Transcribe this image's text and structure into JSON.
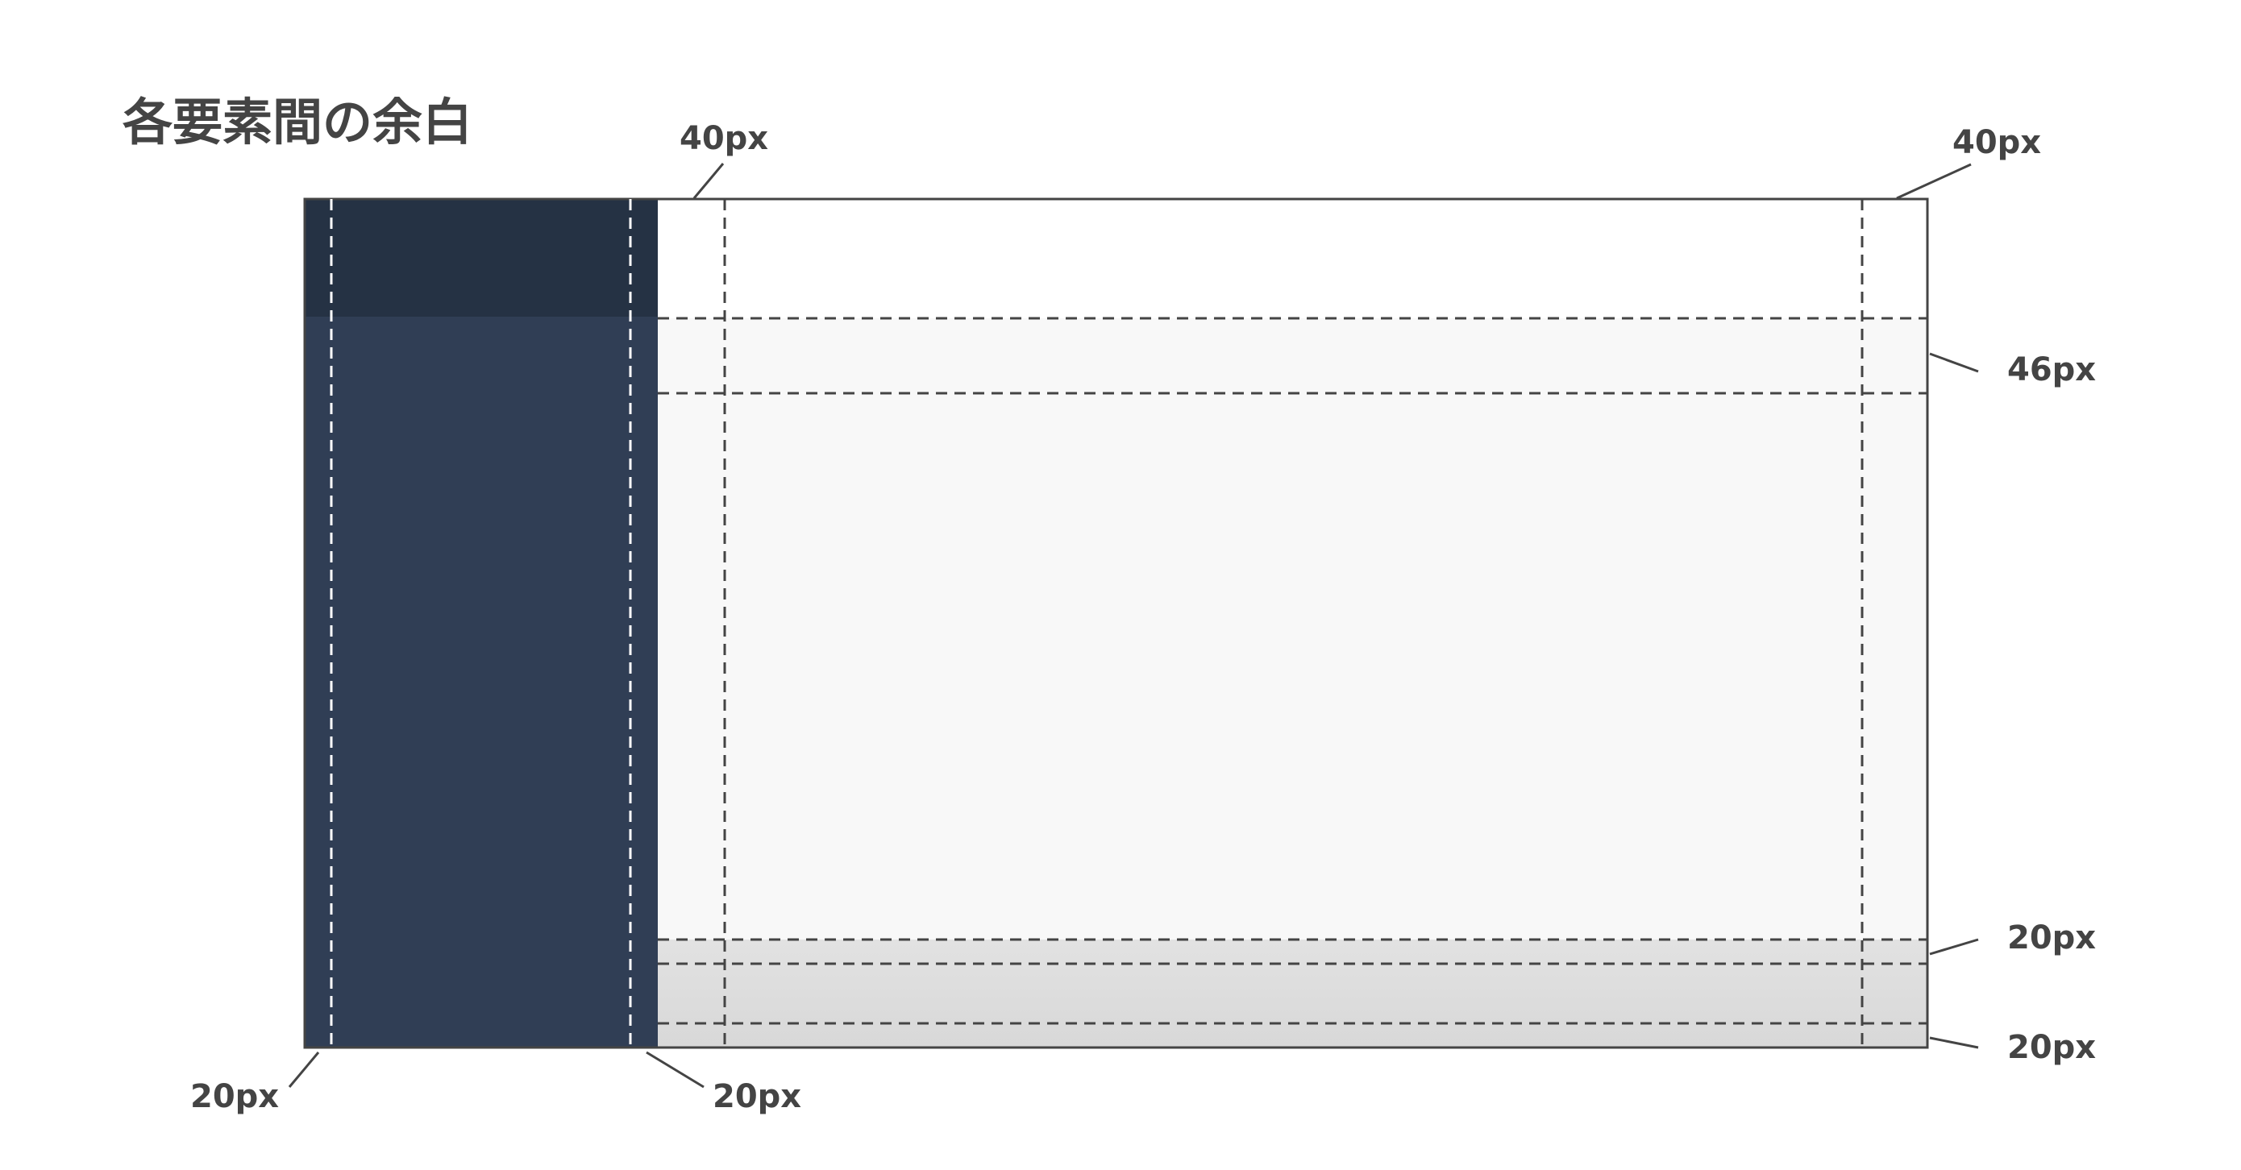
{
  "title": "各要素間の余白",
  "annotations": [
    {
      "label": "40px"
    },
    {
      "label": "40px"
    },
    {
      "label": "46px"
    },
    {
      "label": "20px"
    },
    {
      "label": "20px"
    },
    {
      "label": "20px"
    },
    {
      "label": "20px"
    }
  ]
}
